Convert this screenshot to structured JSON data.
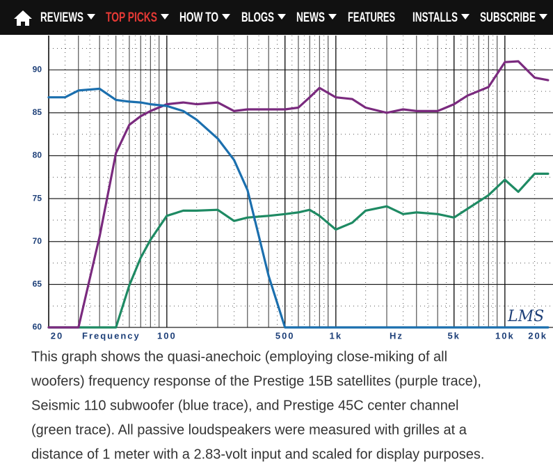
{
  "nav": {
    "items": [
      {
        "label": "REVIEWS",
        "dropdown": true
      },
      {
        "label": "TOP PICKS",
        "dropdown": true,
        "color": "#e53935"
      },
      {
        "label": "HOW TO",
        "dropdown": true
      },
      {
        "label": "BLOGS",
        "dropdown": true
      },
      {
        "label": "NEWS",
        "dropdown": true
      },
      {
        "label": "FEATURES",
        "dropdown": false
      },
      {
        "label": "INSTALLS",
        "dropdown": true
      },
      {
        "label": "SUBSCRIBE",
        "dropdown": true
      }
    ]
  },
  "chart_data": {
    "type": "line",
    "x_label": "Frequency",
    "x_unit": "Hz",
    "annotation": "LMS",
    "log_x": true,
    "grid": true,
    "x": [
      20,
      25,
      30,
      40,
      50,
      60,
      70,
      80,
      100,
      125,
      150,
      200,
      250,
      300,
      400,
      500,
      600,
      700,
      800,
      1000,
      1250,
      1500,
      2000,
      2500,
      3000,
      4000,
      5000,
      6000,
      8000,
      10000,
      12000,
      15000,
      18000
    ],
    "series": [
      {
        "color": "#7a2a7e",
        "values": [
          60,
          60,
          60,
          70.6,
          80.3,
          83.6,
          84.6,
          85.2,
          86.0,
          86.2,
          86.0,
          86.2,
          85.2,
          85.4,
          85.4,
          85.4,
          85.6,
          86.8,
          87.9,
          86.8,
          86.6,
          85.6,
          85.0,
          85.4,
          85.2,
          85.2,
          86.0,
          87.0,
          88.0,
          90.9,
          91.0,
          89.1,
          88.8
        ]
      },
      {
        "color": "#1b6fae",
        "values": [
          86.8,
          86.8,
          87.6,
          87.8,
          86.5,
          86.3,
          86.2,
          86.0,
          85.8,
          85.2,
          84.2,
          82.0,
          79.5,
          76.0,
          66.0,
          60,
          60,
          60,
          60,
          60,
          60,
          60,
          60,
          60,
          60,
          60,
          60,
          60,
          60,
          60,
          60,
          60,
          60
        ]
      },
      {
        "color": "#1e8a63",
        "values": [
          60,
          60,
          60,
          60,
          60,
          64.9,
          68.1,
          70.2,
          73.0,
          73.6,
          73.6,
          73.7,
          72.4,
          72.8,
          73.0,
          73.2,
          73.4,
          73.7,
          73.0,
          71.4,
          72.2,
          73.6,
          74.1,
          73.2,
          73.4,
          73.2,
          72.8,
          73.8,
          75.4,
          77.2,
          75.8,
          77.9,
          77.9
        ]
      }
    ],
    "xlim": [
      20,
      20000
    ],
    "xticks": [
      20,
      100,
      500,
      {
        "value": 1000,
        "label": "1k"
      },
      {
        "value": 5000,
        "label": "5k"
      },
      {
        "value": 10000,
        "label": "10k"
      },
      {
        "value": 20000,
        "label": "20k"
      }
    ],
    "ylim": [
      60,
      94
    ],
    "yticks": [
      60,
      65,
      70,
      75,
      80,
      85,
      90
    ]
  },
  "caption": {
    "lines": [
      "This graph shows the quasi-anechoic (employing close-miking of all",
      "woofers) frequency response of the Prestige 15B satellites (purple trace),",
      "Seismic 110 subwoofer (blue trace), and Prestige 45C center channel",
      "(green trace). All passive loudspeakers were measured with grilles at a",
      "distance of 1 meter with a 2.83-volt input and scaled for display purposes."
    ]
  }
}
